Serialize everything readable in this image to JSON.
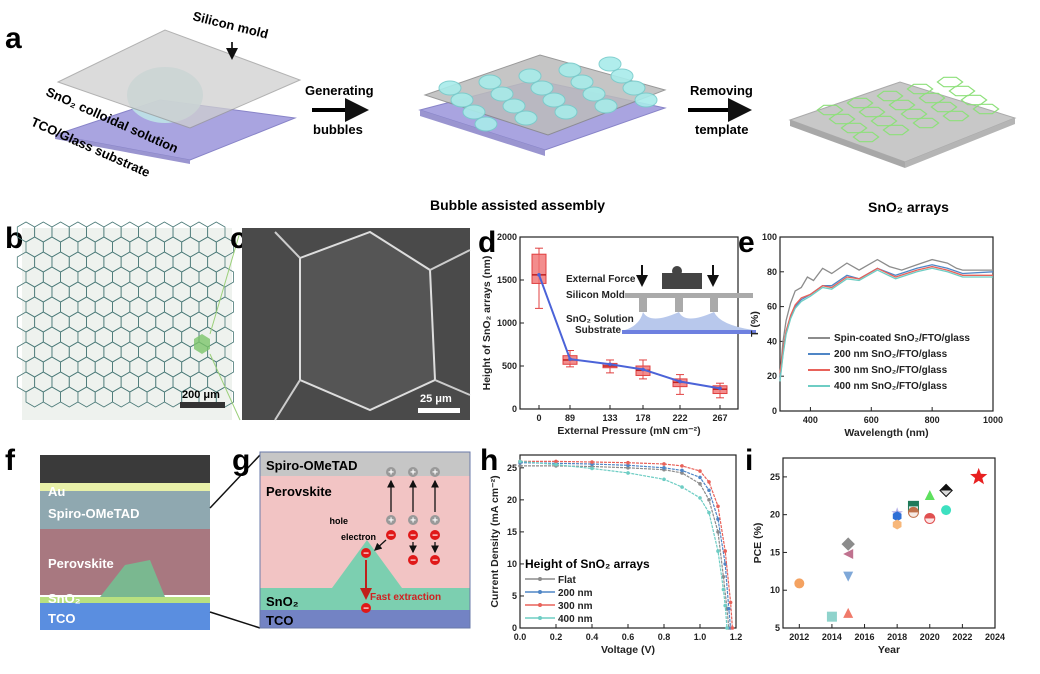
{
  "panel_labels": [
    "a",
    "b",
    "c",
    "d",
    "e",
    "f",
    "g",
    "h",
    "i"
  ],
  "panel_a": {
    "silicon_mold": "Silicon mold",
    "solution": "SnO₂ colloidal solution",
    "substrate": "TCO/Glass substrate",
    "step1_line1": "Generating",
    "step1_line2": "bubbles",
    "step2_line1": "Removing",
    "step2_line2": "template",
    "middle_caption": "Bubble assisted assembly",
    "right_caption": "SnO₂ arrays"
  },
  "panel_b": {
    "scale_bar": "200 μm"
  },
  "panel_c": {
    "scale_bar": "25 μm"
  },
  "panel_f": {
    "layers": [
      "Au",
      "Spiro-OMeTAD",
      "Perovskite",
      "SnO₂",
      "TCO"
    ]
  },
  "panel_g": {
    "layers": [
      "Spiro-OMeTAD",
      "Perovskite",
      "SnO₂",
      "TCO"
    ],
    "hole": "hole",
    "electron": "electron",
    "fast_extraction": "Fast extraction",
    "plus": "+",
    "minus": "−"
  },
  "colors": {
    "accent_red": "#e8423a",
    "accent_blue": "#4b63d8"
  },
  "chart_data": [
    {
      "panel": "d",
      "type": "box",
      "xlabel": "External Pressure (mN cm⁻²)",
      "ylabel": "Height of SnO₂ arrays (nm)",
      "categories": [
        "0",
        "89",
        "133",
        "178",
        "222",
        "267"
      ],
      "ylim": [
        0,
        2000
      ],
      "yticks": [
        0,
        500,
        1000,
        1500,
        2000
      ],
      "boxes": [
        {
          "whisker_low": 1170,
          "q1": 1460,
          "median": 1560,
          "q3": 1800,
          "whisker_high": 1870,
          "mean": 1560
        },
        {
          "whisker_low": 490,
          "q1": 520,
          "median": 570,
          "q3": 620,
          "whisker_high": 680,
          "mean": 580
        },
        {
          "whisker_low": 420,
          "q1": 480,
          "median": 500,
          "q3": 530,
          "whisker_high": 570,
          "mean": 520
        },
        {
          "whisker_low": 350,
          "q1": 390,
          "median": 450,
          "q3": 500,
          "whisker_high": 570,
          "mean": 460
        },
        {
          "whisker_low": 170,
          "q1": 260,
          "median": 310,
          "q3": 350,
          "whisker_high": 400,
          "mean": 320
        },
        {
          "whisker_low": 130,
          "q1": 180,
          "median": 230,
          "q3": 270,
          "whisker_high": 300,
          "mean": 240
        }
      ],
      "inset": {
        "force": "External Force",
        "mold": "Silicon Mold",
        "solution": "SnO₂ Solution",
        "substrate": "Substrate"
      },
      "box_color": "#f07070",
      "line_color": "#4b63d8"
    },
    {
      "panel": "e",
      "type": "line",
      "xlabel": "Wavelength (nm)",
      "ylabel": "T (%)",
      "xlim": [
        300,
        1000
      ],
      "ylim": [
        0,
        100
      ],
      "xticks": [
        400,
        600,
        800,
        1000
      ],
      "yticks": [
        0,
        20,
        40,
        60,
        80,
        100
      ],
      "legend_position": "bottom-right",
      "series": [
        {
          "name": "Spin-coated SnO₂/FTO/glass",
          "color": "#8c8c8c",
          "x": [
            300,
            310,
            320,
            335,
            350,
            370,
            390,
            410,
            440,
            470,
            520,
            560,
            620,
            660,
            700,
            750,
            800,
            850,
            880,
            900,
            1000
          ],
          "y": [
            20,
            40,
            52,
            62,
            69,
            71,
            77,
            75,
            82,
            79,
            85,
            81,
            87,
            83,
            81,
            84,
            87,
            85,
            82,
            81,
            81
          ]
        },
        {
          "name": "200 nm SnO₂/FTO/glass",
          "color": "#4f86c6",
          "x": [
            300,
            310,
            320,
            335,
            350,
            370,
            400,
            440,
            470,
            520,
            560,
            620,
            680,
            750,
            800,
            850,
            900,
            1000
          ],
          "y": [
            18,
            33,
            45,
            54,
            60,
            64,
            67,
            72,
            72,
            78,
            76,
            82,
            78,
            82,
            84,
            82,
            79,
            80
          ]
        },
        {
          "name": "300 nm SnO₂/FTO/glass",
          "color": "#e8625a",
          "x": [
            300,
            310,
            320,
            335,
            350,
            370,
            400,
            440,
            470,
            520,
            560,
            620,
            680,
            750,
            800,
            850,
            900,
            1000
          ],
          "y": [
            22,
            35,
            46,
            55,
            61,
            65,
            67,
            72,
            71,
            77,
            76,
            82,
            77,
            81,
            83,
            81,
            78,
            78
          ]
        },
        {
          "name": "400 nm SnO₂/FTO/glass",
          "color": "#6ecdc4",
          "x": [
            300,
            310,
            320,
            335,
            350,
            370,
            400,
            440,
            470,
            520,
            560,
            620,
            680,
            750,
            800,
            850,
            900,
            1000
          ],
          "y": [
            17,
            32,
            44,
            53,
            59,
            63,
            66,
            71,
            70,
            76,
            75,
            81,
            76,
            80,
            82,
            80,
            77,
            77
          ]
        }
      ]
    },
    {
      "panel": "h",
      "type": "line",
      "xlabel": "Voltage (V)",
      "ylabel": "Current Density (mA cm⁻²)",
      "xlim": [
        0,
        1.2
      ],
      "ylim": [
        0,
        27
      ],
      "xticks": [
        0.0,
        0.2,
        0.4,
        0.6,
        0.8,
        1.0,
        1.2
      ],
      "yticks": [
        0,
        5,
        10,
        15,
        20,
        25
      ],
      "legend_title": "Height of SnO₂ arrays",
      "legend_position": "bottom-left",
      "series": [
        {
          "name": "Flat",
          "color": "#8c8c8c",
          "x": [
            0,
            0.2,
            0.4,
            0.6,
            0.8,
            0.9,
            1.0,
            1.05,
            1.1,
            1.13,
            1.15,
            1.16
          ],
          "y": [
            25.3,
            25.3,
            25.2,
            25.0,
            24.7,
            24.2,
            22.5,
            20.0,
            15.0,
            8.0,
            3.0,
            0
          ]
        },
        {
          "name": "200 nm",
          "color": "#4f86c6",
          "x": [
            0,
            0.2,
            0.4,
            0.6,
            0.8,
            0.9,
            1.0,
            1.05,
            1.1,
            1.14,
            1.16,
            1.17
          ],
          "y": [
            25.8,
            25.7,
            25.6,
            25.4,
            25.0,
            24.6,
            23.5,
            21.5,
            17.0,
            10.0,
            3.0,
            0
          ]
        },
        {
          "name": "300 nm",
          "color": "#e8625a",
          "x": [
            0,
            0.2,
            0.4,
            0.6,
            0.8,
            0.9,
            1.0,
            1.05,
            1.1,
            1.14,
            1.17,
            1.18
          ],
          "y": [
            26.0,
            26.0,
            25.9,
            25.8,
            25.6,
            25.3,
            24.5,
            22.8,
            19.0,
            12.0,
            4.0,
            0
          ]
        },
        {
          "name": "400 nm",
          "color": "#6ecdc4",
          "x": [
            0,
            0.2,
            0.4,
            0.6,
            0.8,
            0.9,
            1.0,
            1.05,
            1.1,
            1.13,
            1.14,
            1.15
          ],
          "y": [
            26.0,
            25.5,
            24.9,
            24.2,
            23.2,
            22.0,
            20.3,
            18.0,
            12.0,
            6.0,
            3.5,
            0
          ]
        }
      ]
    },
    {
      "panel": "i",
      "type": "scatter",
      "xlabel": "Year",
      "ylabel": "PCE (%)",
      "xlim": [
        2011,
        2024
      ],
      "ylim": [
        5,
        27.5
      ],
      "xticks": [
        2012,
        2014,
        2016,
        2018,
        2020,
        2022,
        2024
      ],
      "yticks": [
        5,
        10,
        15,
        20,
        25
      ],
      "points": [
        {
          "x": 2012,
          "y": 10.9,
          "marker": "circle",
          "color": "#f4a261"
        },
        {
          "x": 2014,
          "y": 6.5,
          "marker": "square",
          "color": "#8fd3cc"
        },
        {
          "x": 2015,
          "y": 16.1,
          "marker": "diamond",
          "color": "#8c8c8c"
        },
        {
          "x": 2015,
          "y": 14.8,
          "marker": "triangle-left",
          "color": "#c0728f"
        },
        {
          "x": 2015,
          "y": 11.8,
          "marker": "triangle-down",
          "color": "#7fa8d8"
        },
        {
          "x": 2015,
          "y": 7.0,
          "marker": "triangle-up",
          "color": "#f07a6a"
        },
        {
          "x": 2018,
          "y": 20.2,
          "marker": "star",
          "color": "#b9b4e8"
        },
        {
          "x": 2018,
          "y": 19.8,
          "marker": "hexagon",
          "color": "#2f6fd6"
        },
        {
          "x": 2018,
          "y": 18.7,
          "marker": "hexagon",
          "color": "#f7b77a"
        },
        {
          "x": 2019,
          "y": 21.1,
          "marker": "half-square",
          "color": "#1f7a5a"
        },
        {
          "x": 2019,
          "y": 20.3,
          "marker": "half-circle",
          "color": "#c0704a"
        },
        {
          "x": 2020,
          "y": 22.6,
          "marker": "triangle-up",
          "color": "#5ee05e"
        },
        {
          "x": 2020,
          "y": 19.5,
          "marker": "half-circle",
          "color": "#e05050"
        },
        {
          "x": 2021,
          "y": 23.2,
          "marker": "half-diamond",
          "color": "#111111"
        },
        {
          "x": 2021,
          "y": 20.6,
          "marker": "circle",
          "color": "#3de0c0"
        },
        {
          "x": 2023,
          "y": 25.0,
          "marker": "star",
          "color": "#e82020"
        }
      ]
    }
  ]
}
